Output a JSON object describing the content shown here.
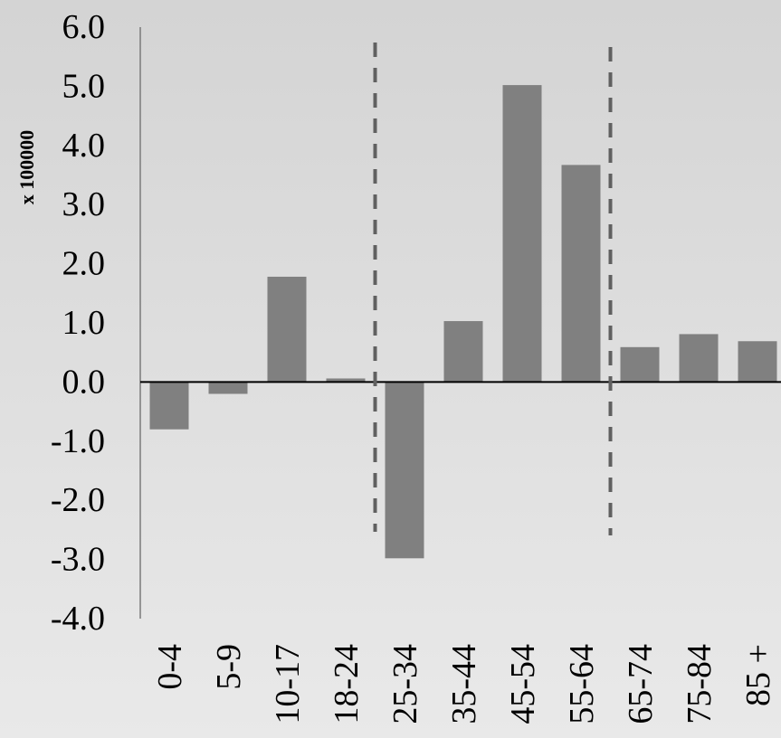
{
  "chart_data": {
    "type": "bar",
    "ylabel": "x 100000",
    "ylim": [
      -4.0,
      6.0
    ],
    "yticks": [
      "6.0",
      "5.0",
      "4.0",
      "3.0",
      "2.0",
      "1.0",
      "0.0",
      "-1.0",
      "-2.0",
      "-3.0",
      "-4.0"
    ],
    "categories": [
      "0-4",
      "5-9",
      "10-17",
      "18-24",
      "25-34",
      "35-44",
      "45-54",
      "55-64",
      "65-74",
      "75-84",
      "85 +"
    ],
    "values": [
      -0.8,
      -0.2,
      1.78,
      0.06,
      -2.98,
      1.03,
      5.02,
      3.67,
      0.59,
      0.81,
      0.69
    ],
    "bar_color": "#808080",
    "divider_color": "#606060",
    "dividers_between": [
      [
        "18-24",
        "25-34"
      ],
      [
        "55-64",
        "65-74"
      ]
    ],
    "grid": false
  }
}
